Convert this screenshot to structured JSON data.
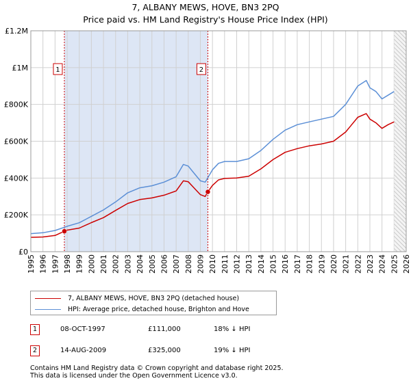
{
  "title": {
    "line1": "7, ALBANY MEWS, HOVE, BN3 2PQ",
    "line2": "Price paid vs. HM Land Registry's House Price Index (HPI)"
  },
  "chart_data": {
    "type": "line",
    "xlim": [
      1995,
      2026
    ],
    "ylim": [
      0,
      1200000
    ],
    "yticks": [
      {
        "value": 0,
        "label": "£0"
      },
      {
        "value": 200000,
        "label": "£200K"
      },
      {
        "value": 400000,
        "label": "£400K"
      },
      {
        "value": 600000,
        "label": "£600K"
      },
      {
        "value": 800000,
        "label": "£800K"
      },
      {
        "value": 1000000,
        "label": "£1M"
      },
      {
        "value": 1200000,
        "label": "£1.2M"
      }
    ],
    "xticks": [
      "1995",
      "1996",
      "1997",
      "1998",
      "1999",
      "2000",
      "2001",
      "2002",
      "2003",
      "2004",
      "2005",
      "2006",
      "2007",
      "2008",
      "2009",
      "2010",
      "2011",
      "2012",
      "2013",
      "2014",
      "2015",
      "2016",
      "2017",
      "2018",
      "2019",
      "2020",
      "2021",
      "2022",
      "2023",
      "2024",
      "2025",
      "2026"
    ],
    "grid": true,
    "shaded_regions": [
      [
        1997.77,
        2009.62
      ],
      [
        2025.0,
        2026.0
      ]
    ],
    "series": [
      {
        "name": "7, ALBANY MEWS, HOVE, BN3 2PQ (detached house)",
        "color": "#cc0000",
        "x": [
          1995,
          1996,
          1997,
          1997.77,
          1998,
          1999,
          2000,
          2001,
          2002,
          2003,
          2004,
          2005,
          2006,
          2007,
          2007.6,
          2008,
          2008.5,
          2009,
          2009.4,
          2009.62,
          2010,
          2010.5,
          2011,
          2012,
          2013,
          2014,
          2015,
          2016,
          2017,
          2018,
          2019,
          2020,
          2021,
          2022,
          2022.7,
          2023,
          2023.5,
          2024,
          2024.5,
          2025
        ],
        "values": [
          78000,
          80000,
          88000,
          111000,
          117000,
          128000,
          158000,
          185000,
          224000,
          262000,
          283000,
          292000,
          307000,
          330000,
          385000,
          380000,
          345000,
          310000,
          300000,
          325000,
          360000,
          390000,
          398000,
          400000,
          410000,
          450000,
          500000,
          540000,
          560000,
          575000,
          585000,
          600000,
          650000,
          730000,
          750000,
          720000,
          700000,
          670000,
          690000,
          705000
        ]
      },
      {
        "name": "HPI: Average price, detached house, Brighton and Hove",
        "color": "#5b8fd6",
        "x": [
          1995,
          1996,
          1997,
          1998,
          1999,
          2000,
          2001,
          2002,
          2003,
          2004,
          2005,
          2006,
          2007,
          2007.6,
          2008,
          2008.5,
          2009,
          2009.4,
          2010,
          2010.5,
          2011,
          2012,
          2013,
          2014,
          2015,
          2016,
          2017,
          2018,
          2019,
          2020,
          2021,
          2022,
          2022.7,
          2023,
          2023.5,
          2024,
          2024.5,
          2025
        ],
        "values": [
          98000,
          103000,
          115000,
          138000,
          157000,
          192000,
          227000,
          270000,
          320000,
          347000,
          358000,
          378000,
          407000,
          474000,
          465000,
          425000,
          385000,
          378000,
          445000,
          480000,
          490000,
          490000,
          505000,
          550000,
          610000,
          660000,
          690000,
          705000,
          720000,
          735000,
          800000,
          900000,
          930000,
          890000,
          870000,
          830000,
          850000,
          870000
        ]
      }
    ],
    "annotations": [
      {
        "label": "1",
        "x": 1997.77,
        "y": 111000
      },
      {
        "label": "2",
        "x": 2009.62,
        "y": 325000
      }
    ]
  },
  "legend": {
    "property_label": "7, ALBANY MEWS, HOVE, BN3 2PQ (detached house)",
    "hpi_label": "HPI: Average price, detached house, Brighton and Hove"
  },
  "transactions": [
    {
      "id": "1",
      "date": "08-OCT-1997",
      "price": "£111,000",
      "hpi": "18% ↓ HPI"
    },
    {
      "id": "2",
      "date": "14-AUG-2009",
      "price": "£325,000",
      "hpi": "19% ↓ HPI"
    }
  ],
  "footer": {
    "line1": "Contains HM Land Registry data © Crown copyright and database right 2025.",
    "line2": "This data is licensed under the Open Government Licence v3.0."
  },
  "colors": {
    "property": "#cc0000",
    "hpi": "#5b8fd6",
    "shade": "#dde6f5",
    "grid": "#d0d0d0"
  }
}
